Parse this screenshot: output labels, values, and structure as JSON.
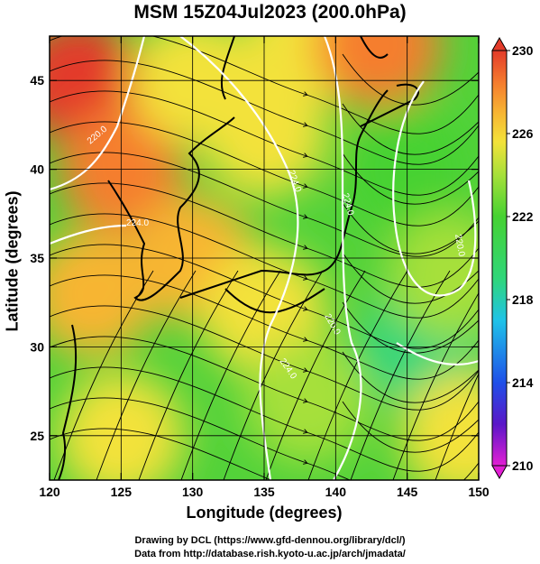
{
  "title": "MSM 15Z04Jul2023 (200.0hPa)",
  "xlabel": "Longitude (degrees)",
  "ylabel": "Latitude  (degrees)",
  "credit_line1": "Drawing by DCL (https://www.gfd-dennou.org/library/dcl/)",
  "credit_line2": "Data from http://database.rish.kyoto-u.ac.jp/arch/jmadata/",
  "chart_data": {
    "type": "heatmap",
    "title": "MSM 15Z04Jul2023 (200.0hPa)",
    "xlabel": "Longitude (degrees)",
    "ylabel": "Latitude  (degrees)",
    "xlim": [
      120,
      150
    ],
    "ylim": [
      22.5,
      47.5
    ],
    "x_ticks": [
      "120",
      "125",
      "130",
      "135",
      "140",
      "145",
      "150"
    ],
    "y_ticks": [
      "25",
      "30",
      "35",
      "40",
      "45"
    ],
    "colorbar": {
      "min": 210,
      "max": 230,
      "tick_labels": [
        "230",
        "226",
        "222",
        "218",
        "214",
        "210"
      ],
      "colors": [
        "#e21fd4",
        "#5a17c8",
        "#1f4fe8",
        "#1fc3e8",
        "#2fd67a",
        "#46d232",
        "#a6e03a",
        "#f3e23a",
        "#f7b533",
        "#f57e2e",
        "#e33b2a"
      ]
    },
    "contour_labels": [
      "220.0",
      "224.0",
      "224.0",
      "220.0",
      "220.0",
      "224.0",
      "224.0"
    ],
    "field_samples": [
      {
        "lon": 122,
        "lat": 45,
        "value": 229
      },
      {
        "lon": 125,
        "lat": 40,
        "value": 227
      },
      {
        "lon": 130,
        "lat": 45,
        "value": 224
      },
      {
        "lon": 138,
        "lat": 47,
        "value": 224
      },
      {
        "lon": 143,
        "lat": 47,
        "value": 228
      },
      {
        "lon": 123,
        "lat": 33,
        "value": 226
      },
      {
        "lon": 130,
        "lat": 35,
        "value": 225
      },
      {
        "lon": 135,
        "lat": 32,
        "value": 223
      },
      {
        "lon": 138,
        "lat": 27,
        "value": 222
      },
      {
        "lon": 145,
        "lat": 40,
        "value": 219
      },
      {
        "lon": 146,
        "lat": 30,
        "value": 218
      },
      {
        "lon": 148,
        "lat": 34,
        "value": 221
      },
      {
        "lon": 149,
        "lat": 25,
        "value": 223
      },
      {
        "lon": 125,
        "lat": 25,
        "value": 224
      },
      {
        "lon": 135,
        "lat": 42,
        "value": 223
      }
    ]
  }
}
